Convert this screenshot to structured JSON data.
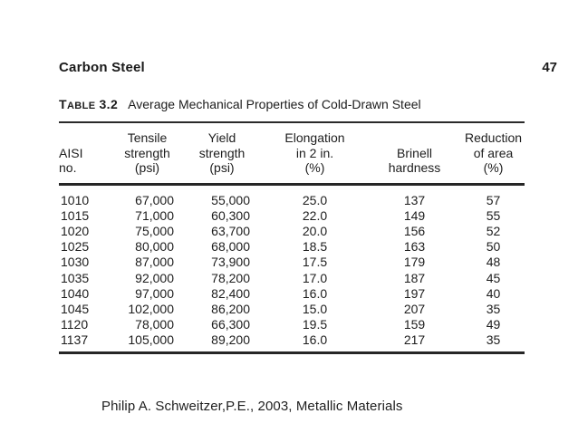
{
  "page": {
    "running_head": "Carbon Steel",
    "page_number": "47"
  },
  "table": {
    "label_initial": "T",
    "label_rest": "ABLE",
    "number": "3.2",
    "title": "Average Mechanical Properties of Cold-Drawn Steel",
    "columns": [
      {
        "key": "aisi-no",
        "lines": [
          "AISI",
          "no."
        ]
      },
      {
        "key": "tensile-strength",
        "lines": [
          "Tensile",
          "strength",
          "(psi)"
        ]
      },
      {
        "key": "yield-strength",
        "lines": [
          "Yield",
          "strength",
          "(psi)"
        ]
      },
      {
        "key": "elongation",
        "lines": [
          "Elongation",
          "in 2 in.",
          "(%)"
        ]
      },
      {
        "key": "brinell-hardness",
        "lines": [
          "Brinell",
          "hardness"
        ]
      },
      {
        "key": "reduction-of-area",
        "lines": [
          "Reduction",
          "of area",
          "(%)"
        ]
      }
    ],
    "rows": [
      [
        "1010",
        "67,000",
        "55,000",
        "25.0",
        "137",
        "57"
      ],
      [
        "1015",
        "71,000",
        "60,300",
        "22.0",
        "149",
        "55"
      ],
      [
        "1020",
        "75,000",
        "63,700",
        "20.0",
        "156",
        "52"
      ],
      [
        "1025",
        "80,000",
        "68,000",
        "18.5",
        "163",
        "50"
      ],
      [
        "1030",
        "87,000",
        "73,900",
        "17.5",
        "179",
        "48"
      ],
      [
        "1035",
        "92,000",
        "78,200",
        "17.0",
        "187",
        "45"
      ],
      [
        "1040",
        "97,000",
        "82,400",
        "16.0",
        "197",
        "40"
      ],
      [
        "1045",
        "102,000",
        "86,200",
        "15.0",
        "207",
        "35"
      ],
      [
        "1120",
        "78,000",
        "66,300",
        "19.5",
        "159",
        "49"
      ],
      [
        "1137",
        "105,000",
        "89,200",
        "16.0",
        "217",
        "35"
      ]
    ]
  },
  "caption": "Philip A. Schweitzer,P.E., 2003, Metallic Materials"
}
